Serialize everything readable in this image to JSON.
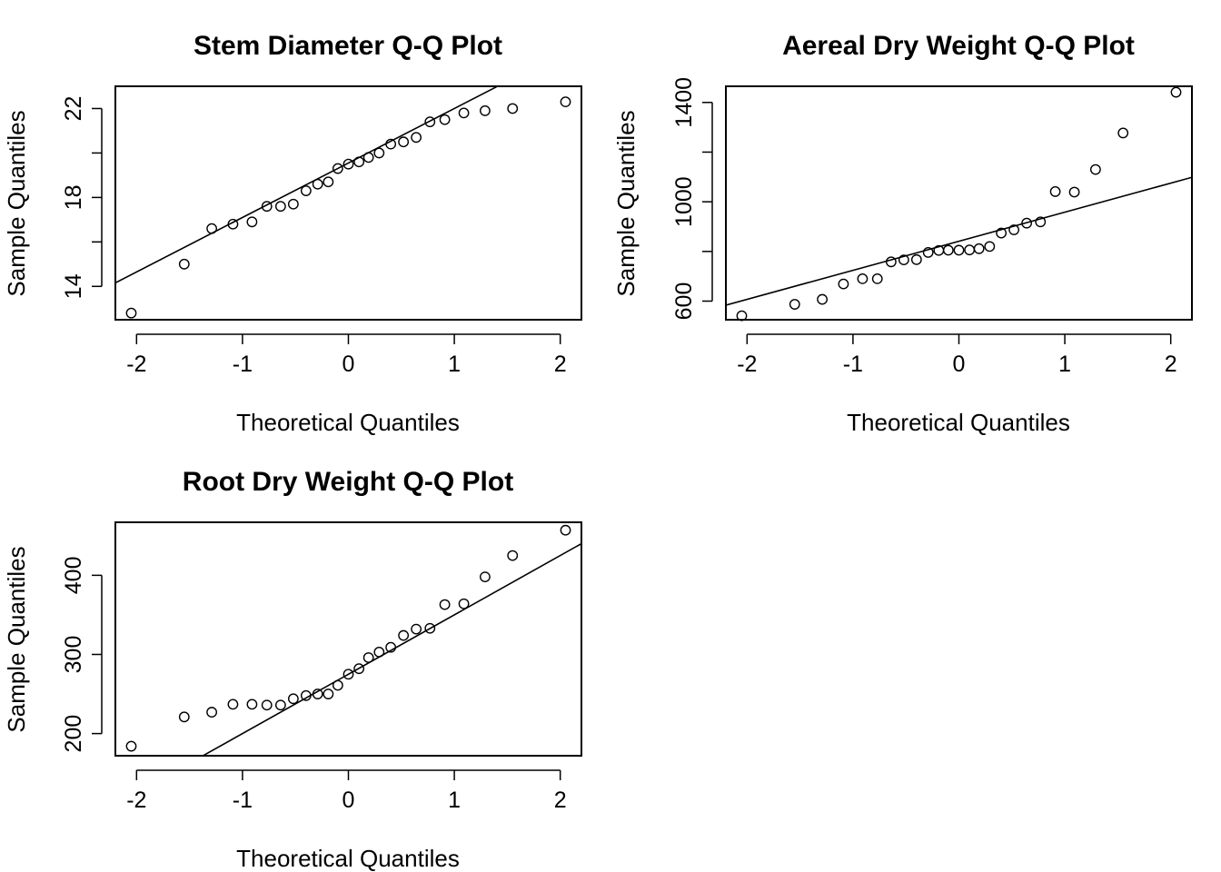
{
  "chart_data": [
    {
      "type": "scatter",
      "title": "Stem Diameter Q-Q Plot",
      "xlabel": "Theoretical Quantiles",
      "ylabel": "Sample Quantiles",
      "xlim": [
        -2.2,
        2.2
      ],
      "ylim": [
        12.5,
        23.0
      ],
      "xticks": [
        -2,
        -1,
        0,
        1,
        2
      ],
      "xtick_labels": [
        "-2",
        "-1",
        "0",
        "1",
        "2"
      ],
      "yticks": [
        14,
        16,
        18,
        20,
        22
      ],
      "ytick_labels": [
        "14",
        "",
        "18",
        "",
        "22"
      ],
      "grid": false,
      "points": {
        "x": [
          -2.05,
          -1.55,
          -1.29,
          -1.09,
          -0.91,
          -0.77,
          -0.64,
          -0.52,
          -0.4,
          -0.29,
          -0.19,
          -0.1,
          0.0,
          0.1,
          0.19,
          0.29,
          0.4,
          0.52,
          0.64,
          0.77,
          0.91,
          1.09,
          1.29,
          1.55,
          2.05
        ],
        "y": [
          12.8,
          15.0,
          16.6,
          16.8,
          16.9,
          17.6,
          17.6,
          17.7,
          18.3,
          18.6,
          18.7,
          19.3,
          19.5,
          19.6,
          19.8,
          20.0,
          20.4,
          20.5,
          20.7,
          21.4,
          21.5,
          21.8,
          21.9,
          22.0,
          22.3
        ]
      },
      "reference_line": {
        "intercept": 19.55,
        "slope": 2.45
      }
    },
    {
      "type": "scatter",
      "title": "Aereal Dry Weight Q-Q Plot",
      "xlabel": "Theoretical Quantiles",
      "ylabel": "Sample Quantiles",
      "xlim": [
        -2.2,
        2.2
      ],
      "ylim": [
        525,
        1465
      ],
      "xticks": [
        -2,
        -1,
        0,
        1,
        2
      ],
      "xtick_labels": [
        "-2",
        "-1",
        "0",
        "1",
        "2"
      ],
      "yticks": [
        600,
        800,
        1000,
        1200,
        1400
      ],
      "ytick_labels": [
        "600",
        "",
        "1000",
        "",
        "1400"
      ],
      "grid": false,
      "points": {
        "x": [
          -2.05,
          -1.55,
          -1.29,
          -1.09,
          -0.91,
          -0.77,
          -0.64,
          -0.52,
          -0.4,
          -0.29,
          -0.19,
          -0.1,
          0.0,
          0.1,
          0.19,
          0.29,
          0.4,
          0.52,
          0.64,
          0.77,
          0.91,
          1.09,
          1.29,
          1.55,
          2.05
        ],
        "y": [
          541,
          587,
          607,
          669,
          690,
          690,
          758,
          766,
          767,
          796,
          804,
          805,
          805,
          806,
          811,
          820,
          874,
          887,
          914,
          919,
          1041,
          1039,
          1130,
          1277,
          1441
        ]
      },
      "reference_line": {
        "intercept": 841,
        "slope": 117
      }
    },
    {
      "type": "scatter",
      "title": "Root Dry Weight Q-Q Plot",
      "xlabel": "Theoretical Quantiles",
      "ylabel": "Sample Quantiles",
      "xlim": [
        -2.2,
        2.2
      ],
      "ylim": [
        172,
        467
      ],
      "xticks": [
        -2,
        -1,
        0,
        1,
        2
      ],
      "xtick_labels": [
        "-2",
        "-1",
        "0",
        "1",
        "2"
      ],
      "yticks": [
        200,
        300,
        400
      ],
      "ytick_labels": [
        "200",
        "300",
        "400"
      ],
      "grid": false,
      "points": {
        "x": [
          -2.05,
          -1.55,
          -1.29,
          -1.09,
          -0.91,
          -0.77,
          -0.64,
          -0.52,
          -0.4,
          -0.29,
          -0.19,
          -0.1,
          0.0,
          0.1,
          0.19,
          0.29,
          0.4,
          0.52,
          0.64,
          0.77,
          0.91,
          1.09,
          1.29,
          1.55,
          2.05
        ],
        "y": [
          184,
          221,
          227,
          237,
          237,
          236,
          236,
          244,
          248,
          250,
          250,
          261,
          275,
          282,
          296,
          303,
          309,
          324,
          332,
          333,
          363,
          364,
          398,
          425,
          457
        ]
      },
      "reference_line": {
        "intercept": 275,
        "slope": 75
      }
    }
  ]
}
